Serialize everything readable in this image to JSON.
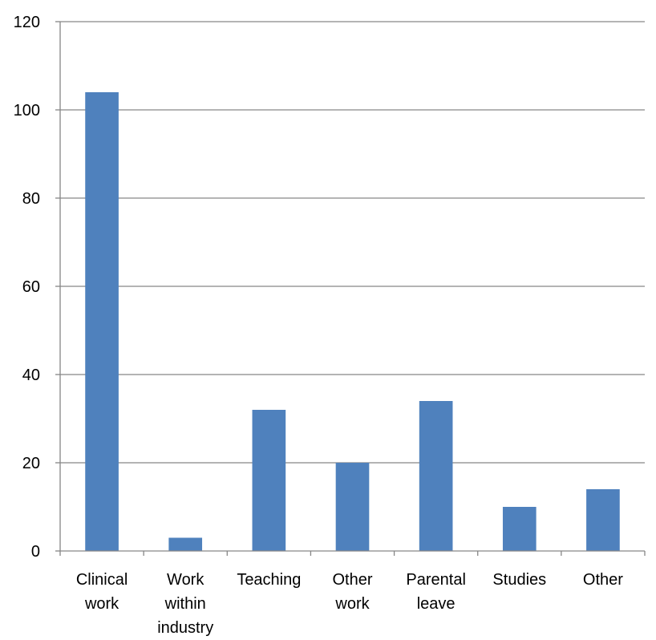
{
  "chart_data": {
    "type": "bar",
    "categories": [
      [
        "Clinical",
        "work"
      ],
      [
        "Work",
        "within",
        "industry"
      ],
      [
        "Teaching"
      ],
      [
        "Other",
        "work"
      ],
      [
        "Parental",
        "leave"
      ],
      [
        "Studies"
      ],
      [
        "Other"
      ]
    ],
    "values": [
      104,
      3,
      32,
      20,
      34,
      10,
      14
    ],
    "ylim": [
      0,
      120
    ],
    "yticks": [
      0,
      20,
      40,
      60,
      80,
      100,
      120
    ],
    "grid": true,
    "bar_color": "#4f81bd",
    "grid_color": "#868686",
    "axis_color": "#868686"
  }
}
